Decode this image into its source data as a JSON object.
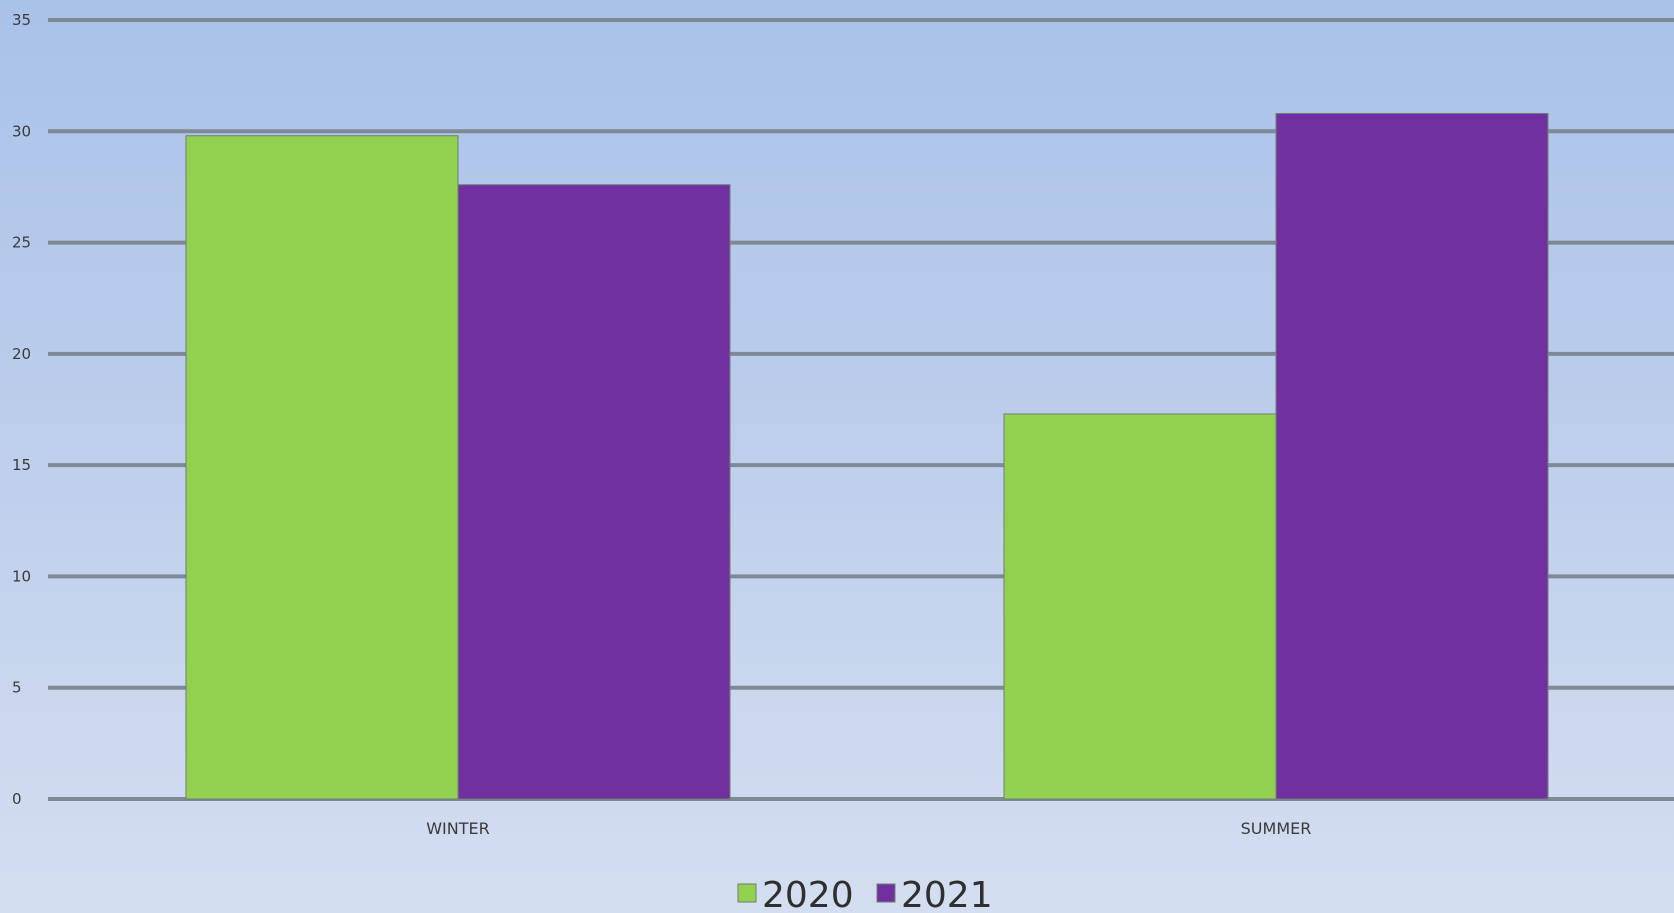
{
  "chart_data": {
    "type": "bar",
    "title": "",
    "xlabel": "",
    "ylabel": "",
    "categories": [
      "WINTER",
      "SUMMER"
    ],
    "series": [
      {
        "name": "2020",
        "values": [
          29.8,
          17.3
        ],
        "color": "#92d050"
      },
      {
        "name": "2021",
        "values": [
          27.6,
          30.8
        ],
        "color": "#7030a0"
      }
    ],
    "ylim": [
      0,
      35
    ],
    "yticks": [
      "0",
      "5",
      "10",
      "15",
      "20",
      "25",
      "30",
      "35"
    ],
    "grid": true,
    "legend_position": "bottom",
    "colors": {
      "gridline": "#7f8895",
      "bar_outline": "#6f7f6f"
    }
  }
}
